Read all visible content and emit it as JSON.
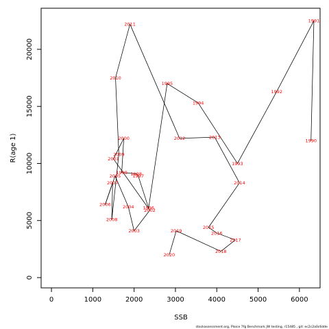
{
  "chart_data": {
    "type": "line",
    "xlabel": "SSB",
    "ylabel": "R(age 1)",
    "xlim": [
      -250,
      6500
    ],
    "ylim": [
      -900,
      23600
    ],
    "x_ticks": [
      0,
      1000,
      2000,
      3000,
      4000,
      5000,
      6000
    ],
    "y_ticks": [
      0,
      5000,
      10000,
      15000,
      20000
    ],
    "point_color": "#ff0000",
    "line_color": "#000000",
    "points": [
      {
        "label": "1990",
        "x": 6280,
        "y": 12000
      },
      {
        "label": "1991",
        "x": 6350,
        "y": 22500
      },
      {
        "label": "1992",
        "x": 5450,
        "y": 16300
      },
      {
        "label": "1993",
        "x": 4500,
        "y": 10000
      },
      {
        "label": "1994",
        "x": 3550,
        "y": 15300
      },
      {
        "label": "1995",
        "x": 2800,
        "y": 17000
      },
      {
        "label": "1996",
        "x": 2350,
        "y": 6100
      },
      {
        "label": "1997",
        "x": 2100,
        "y": 8900
      },
      {
        "label": "1998",
        "x": 2050,
        "y": 9100
      },
      {
        "label": "1999",
        "x": 1700,
        "y": 9200
      },
      {
        "label": "2000",
        "x": 1750,
        "y": 12200
      },
      {
        "label": "2001",
        "x": 1500,
        "y": 10400
      },
      {
        "label": "2002",
        "x": 2380,
        "y": 5900
      },
      {
        "label": "2003",
        "x": 2000,
        "y": 4100
      },
      {
        "label": "2004",
        "x": 1860,
        "y": 6200
      },
      {
        "label": "2005",
        "x": 1540,
        "y": 8900
      },
      {
        "label": "2006",
        "x": 1300,
        "y": 6400
      },
      {
        "label": "2007",
        "x": 1480,
        "y": 8300
      },
      {
        "label": "2008",
        "x": 1460,
        "y": 5100
      },
      {
        "label": "2009",
        "x": 1630,
        "y": 10800
      },
      {
        "label": "2010",
        "x": 1550,
        "y": 17500
      },
      {
        "label": "2011",
        "x": 1900,
        "y": 22200
      },
      {
        "label": "2012",
        "x": 3100,
        "y": 12200
      },
      {
        "label": "2013",
        "x": 3950,
        "y": 12300
      },
      {
        "label": "2014",
        "x": 4550,
        "y": 8300
      },
      {
        "label": "2015",
        "x": 3800,
        "y": 4400
      },
      {
        "label": "2016",
        "x": 4000,
        "y": 3900
      },
      {
        "label": "2017",
        "x": 4450,
        "y": 3300
      },
      {
        "label": "2018",
        "x": 4100,
        "y": 2300
      },
      {
        "label": "2019",
        "x": 3020,
        "y": 4100
      },
      {
        "label": "2020",
        "x": 2850,
        "y": 2000
      }
    ]
  },
  "footer": "stockassessment.org, Plaice 7fg Benchmark JW testing, r15485 , git: ec2c2a0c6dde"
}
